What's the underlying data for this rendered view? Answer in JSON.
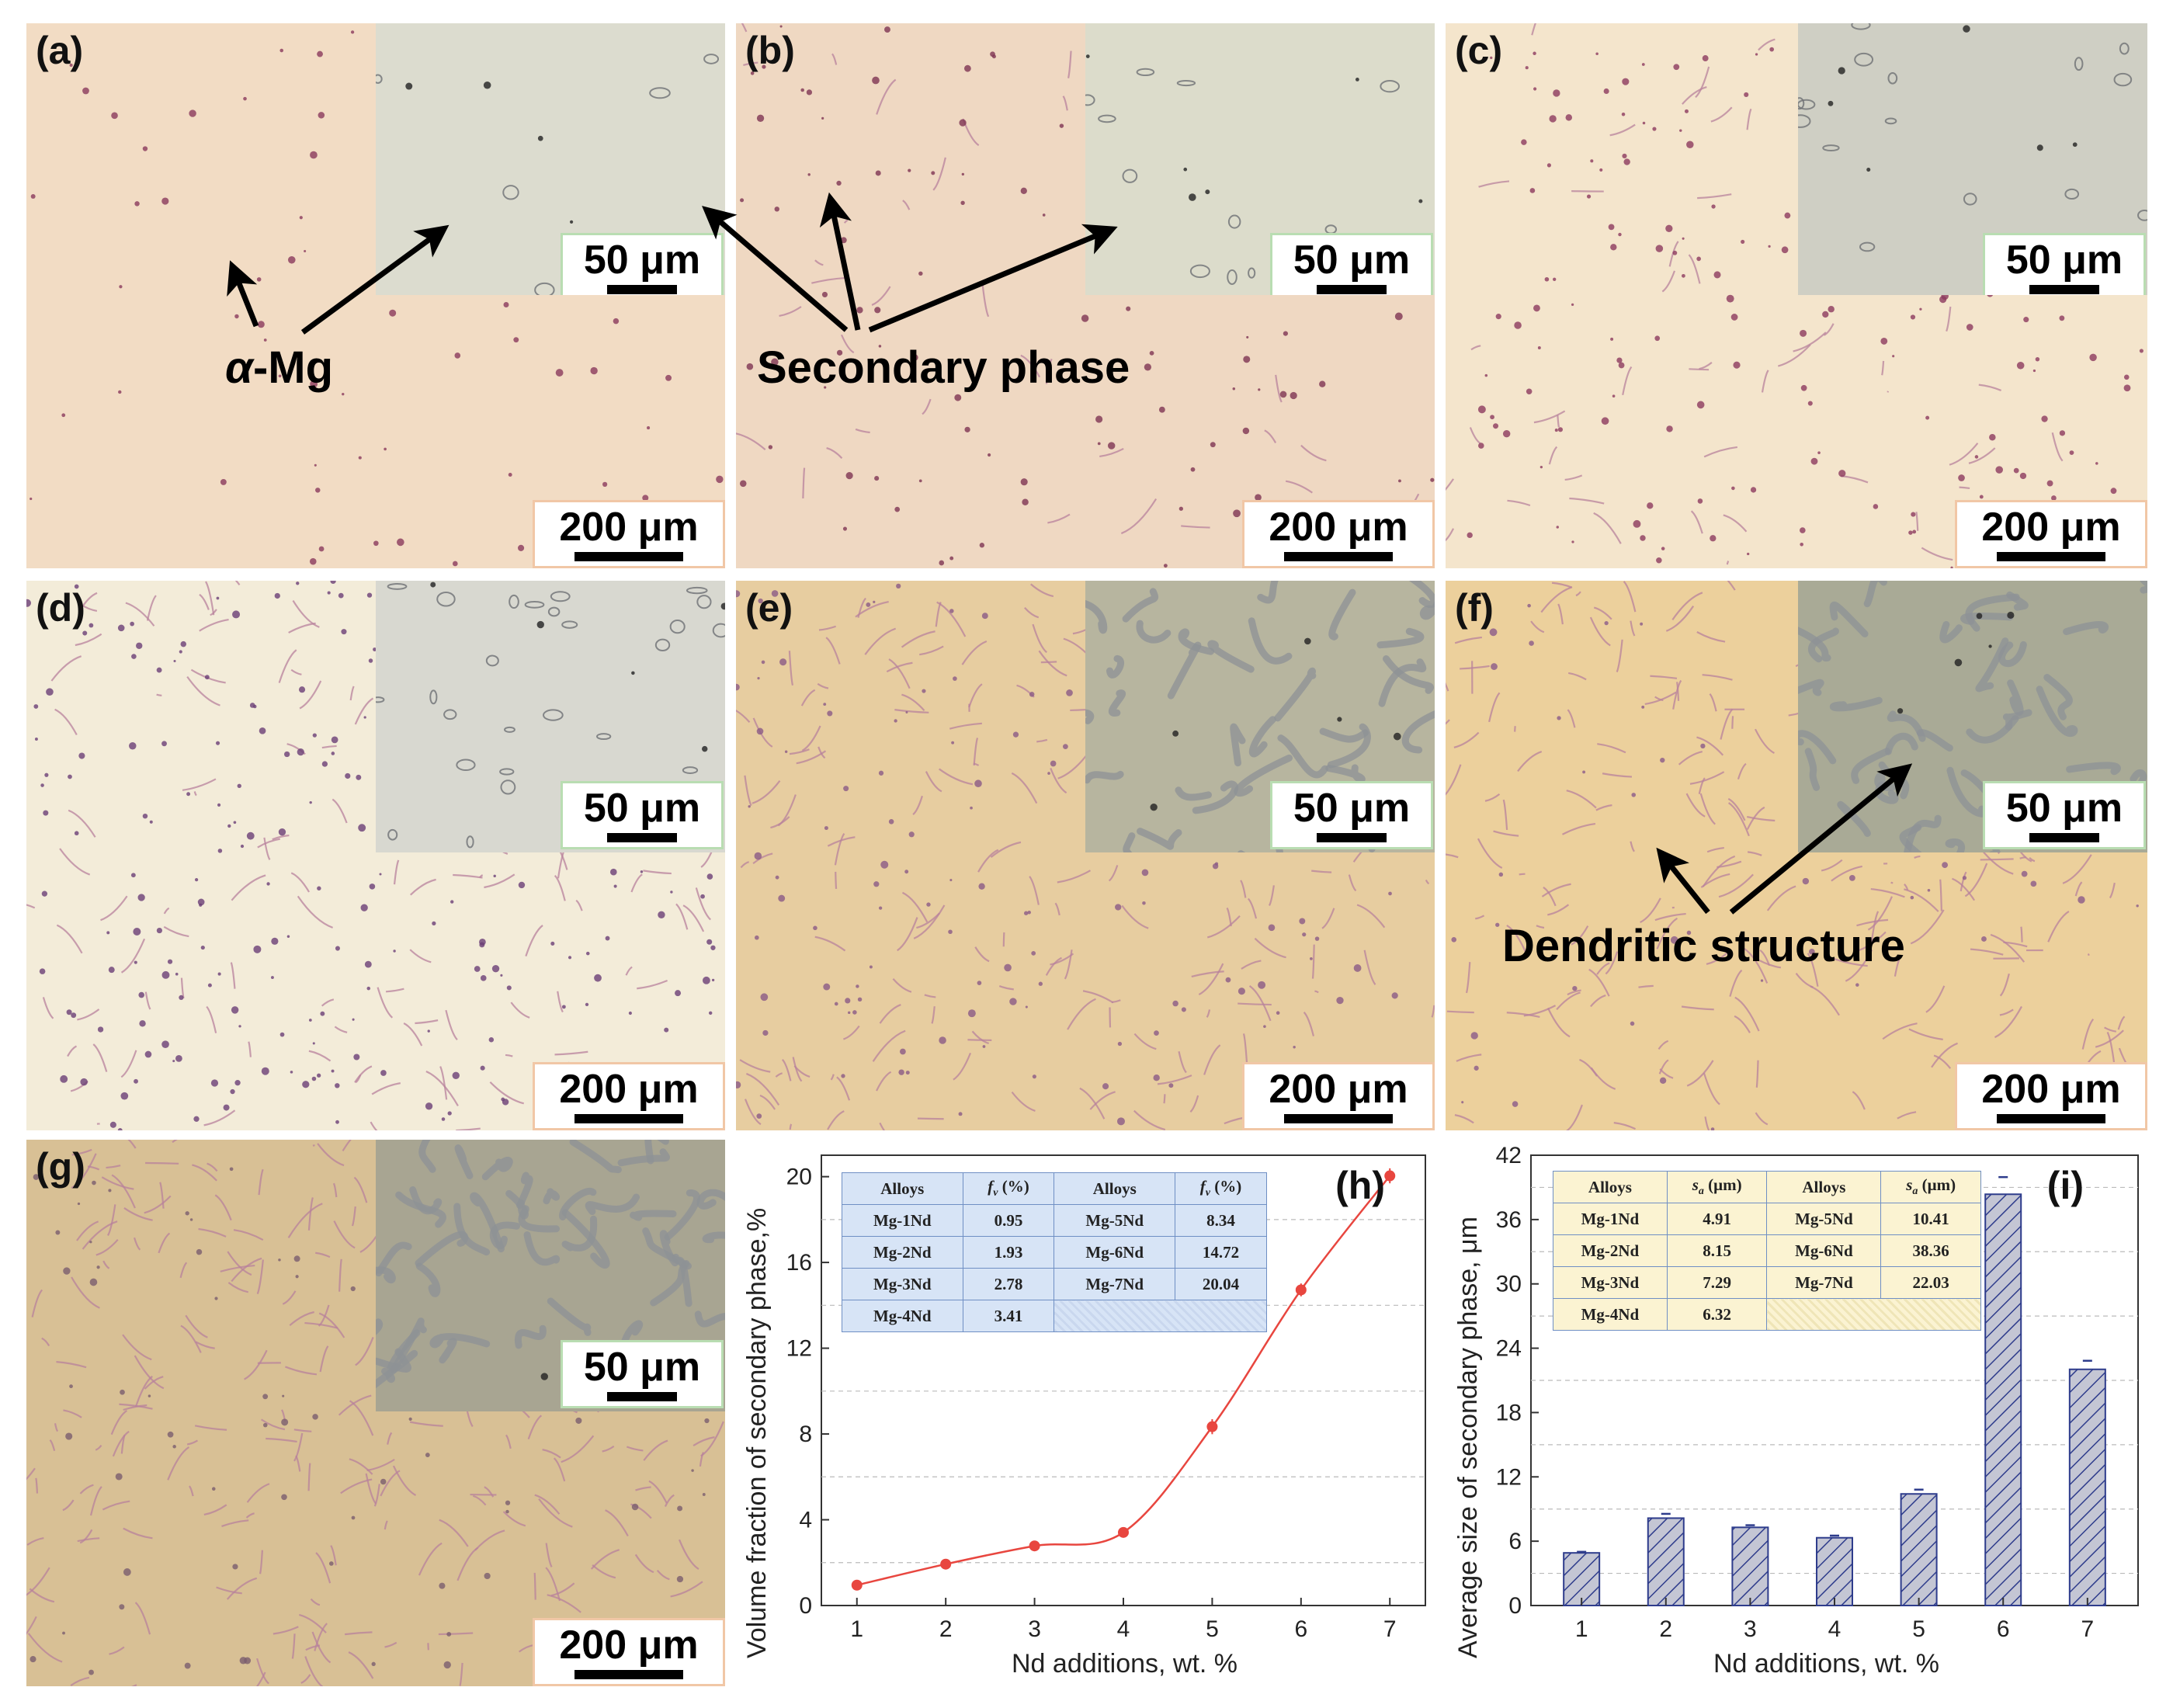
{
  "panels": [
    {
      "id": "a",
      "label": "(a)",
      "scale_main": "200 μm",
      "scale_inset": "50 μm",
      "bg": "#f2dcc4",
      "inset_bg": "#dcdccf",
      "dot": "#8a3a5c",
      "network": 0,
      "dots": 70
    },
    {
      "id": "b",
      "label": "(b)",
      "scale_main": "200 μm",
      "scale_inset": "50 μm",
      "bg": "#efd8c2",
      "inset_bg": "#dcdccb",
      "dot": "#7e3552",
      "network": 0.15,
      "dots": 110
    },
    {
      "id": "c",
      "label": "(c)",
      "scale_main": "200 μm",
      "scale_inset": "50 μm",
      "bg": "#f4e5cc",
      "inset_bg": "#cfcfc4",
      "dot": "#8c3a5e",
      "network": 0.25,
      "dots": 200
    },
    {
      "id": "d",
      "label": "(d)",
      "scale_main": "200 μm",
      "scale_inset": "50 μm",
      "bg": "#f3ecd9",
      "inset_bg": "#d8d8d0",
      "dot": "#6a3f75",
      "network": 0.5,
      "dots": 240
    },
    {
      "id": "e",
      "label": "(e)",
      "scale_main": "200 μm",
      "scale_inset": "50 μm",
      "bg": "#e7cda0",
      "inset_bg": "#b7b59f",
      "dot": "#8b5a86",
      "network": 0.7,
      "dots": 150
    },
    {
      "id": "f",
      "label": "(f)",
      "scale_main": "200 μm",
      "scale_inset": "50 μm",
      "bg": "#ecd09c",
      "inset_bg": "#a9aa96",
      "dot": "#8b5a8a",
      "network": 0.85,
      "dots": 60
    },
    {
      "id": "g",
      "label": "(g)",
      "scale_main": "200 μm",
      "scale_inset": "50 μm",
      "bg": "#d8c095",
      "inset_bg": "#a8a592",
      "dot": "#7a5c6e",
      "network": 1,
      "dots": 80
    }
  ],
  "annotations": {
    "alpha_mg": {
      "greek": "α",
      "rest": "-Mg",
      "color": "#ee1c24"
    },
    "secondary_phase": {
      "text": "Secondary phase",
      "color": "#1aa64a"
    },
    "dendritic": {
      "text": "Dendritic structure",
      "color": "#1e73be"
    }
  },
  "chart_h": {
    "label": "(h)",
    "ylabel": "Volume fraction of secondary phase,%",
    "xlabel": "Nd additions, wt. %",
    "x": [
      1,
      2,
      3,
      4,
      5,
      6,
      7
    ],
    "values": [
      0.95,
      1.93,
      2.78,
      3.41,
      8.34,
      14.72,
      20.04
    ],
    "errors": [
      0.1,
      0.1,
      0.2,
      0.15,
      0.35,
      0.3,
      0.35
    ],
    "ylim": [
      0,
      21
    ],
    "yticks": [
      0,
      4,
      8,
      12,
      16,
      20
    ],
    "color": "#e8463f",
    "table": {
      "headers": [
        "Alloys",
        "f",
        "v",
        "(%)",
        "Alloys",
        "f",
        "v",
        "(%)"
      ],
      "rows": [
        [
          "Mg-1Nd",
          "0.95",
          "Mg-5Nd",
          "8.34"
        ],
        [
          "Mg-2Nd",
          "1.93",
          "Mg-6Nd",
          "14.72"
        ],
        [
          "Mg-3Nd",
          "2.78",
          "Mg-7Nd",
          "20.04"
        ],
        [
          "Mg-4Nd",
          "3.41",
          "",
          ""
        ]
      ]
    }
  },
  "chart_i": {
    "label": "(i)",
    "ylabel": "Average size of secondary phase, μm",
    "xlabel": "Nd additions, wt. %",
    "x": [
      1,
      2,
      3,
      4,
      5,
      6,
      7
    ],
    "values": [
      4.91,
      8.15,
      7.29,
      6.32,
      10.41,
      38.36,
      22.03
    ],
    "errors": [
      0.1,
      0.4,
      0.2,
      0.2,
      0.4,
      1.6,
      0.8
    ],
    "ylim": [
      0,
      42
    ],
    "yticks": [
      0,
      6,
      12,
      18,
      24,
      30,
      36,
      42
    ],
    "bar_color": "#c4c6d4",
    "hatch_color": "#2e3c8c",
    "table": {
      "headers": [
        "Alloys",
        "s",
        "a",
        "(μm)",
        "Alloys",
        "s",
        "a",
        "(μm)"
      ],
      "rows": [
        [
          "Mg-1Nd",
          "4.91",
          "Mg-5Nd",
          "10.41"
        ],
        [
          "Mg-2Nd",
          "8.15",
          "Mg-6Nd",
          "38.36"
        ],
        [
          "Mg-3Nd",
          "7.29",
          "Mg-7Nd",
          "22.03"
        ],
        [
          "Mg-4Nd",
          "6.32",
          "",
          ""
        ]
      ]
    }
  }
}
